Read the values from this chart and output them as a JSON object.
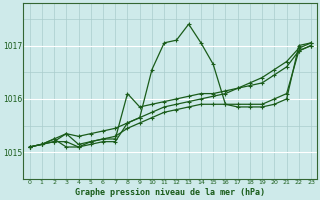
{
  "title": "Graphe pression niveau de la mer (hPa)",
  "bg_color": "#ceeaea",
  "grid_color_major": "#aacccc",
  "grid_color_white": "#ffffff",
  "line_color": "#1a5c1a",
  "xlim": [
    -0.5,
    23.5
  ],
  "ylim": [
    1014.5,
    1017.8
  ],
  "yticks": [
    1015,
    1016,
    1017
  ],
  "xticks": [
    0,
    1,
    2,
    3,
    4,
    5,
    6,
    7,
    8,
    9,
    10,
    11,
    12,
    13,
    14,
    15,
    16,
    17,
    18,
    19,
    20,
    21,
    22,
    23
  ],
  "series": [
    {
      "x": [
        0,
        1,
        2,
        3,
        4,
        5,
        6,
        7,
        8,
        9,
        10,
        11,
        12,
        13,
        14,
        15,
        16,
        17,
        18,
        19,
        20,
        21,
        22,
        23
      ],
      "y": [
        1015.1,
        1015.15,
        1015.2,
        1015.2,
        1015.1,
        1015.15,
        1015.2,
        1015.2,
        1015.55,
        1015.65,
        1016.55,
        1017.05,
        1017.1,
        1017.4,
        1017.05,
        1016.65,
        1015.9,
        1015.85,
        1015.85,
        1015.85,
        1015.9,
        1016.0,
        1017.0,
        1017.05
      ]
    },
    {
      "x": [
        0,
        1,
        2,
        3,
        4,
        5,
        6,
        7,
        8,
        9,
        10,
        11,
        12,
        13,
        14,
        15,
        16,
        17,
        18,
        19,
        20,
        21,
        22,
        23
      ],
      "y": [
        1015.1,
        1015.15,
        1015.25,
        1015.35,
        1015.3,
        1015.35,
        1015.4,
        1015.45,
        1015.55,
        1015.65,
        1015.75,
        1015.85,
        1015.9,
        1015.95,
        1016.0,
        1016.05,
        1016.1,
        1016.2,
        1016.3,
        1016.4,
        1016.55,
        1016.7,
        1016.95,
        1017.05
      ]
    },
    {
      "x": [
        0,
        1,
        2,
        3,
        4,
        5,
        6,
        7,
        8,
        9,
        10,
        11,
        12,
        13,
        14,
        15,
        16,
        17,
        18,
        19,
        20,
        21,
        22,
        23
      ],
      "y": [
        1015.1,
        1015.15,
        1015.25,
        1015.1,
        1015.1,
        1015.2,
        1015.25,
        1015.25,
        1016.1,
        1015.85,
        1015.9,
        1015.95,
        1016.0,
        1016.05,
        1016.1,
        1016.1,
        1016.15,
        1016.2,
        1016.25,
        1016.3,
        1016.45,
        1016.6,
        1016.9,
        1017.0
      ]
    },
    {
      "x": [
        0,
        1,
        2,
        3,
        4,
        5,
        6,
        7,
        8,
        9,
        10,
        11,
        12,
        13,
        14,
        15,
        16,
        17,
        18,
        19,
        20,
        21,
        22,
        23
      ],
      "y": [
        1015.1,
        1015.15,
        1015.2,
        1015.35,
        1015.15,
        1015.2,
        1015.25,
        1015.3,
        1015.45,
        1015.55,
        1015.65,
        1015.75,
        1015.8,
        1015.85,
        1015.9,
        1015.9,
        1015.9,
        1015.9,
        1015.9,
        1015.9,
        1016.0,
        1016.1,
        1016.9,
        1017.0
      ]
    }
  ]
}
